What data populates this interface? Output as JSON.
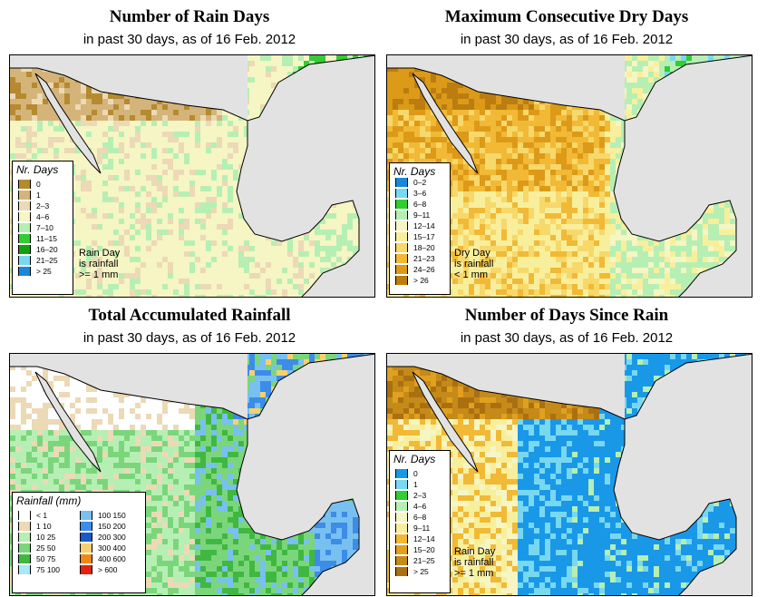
{
  "panels": [
    {
      "title": "Number of Rain Days",
      "subtitle": "in past 30 days, as of  16 Feb. 2012",
      "legend": {
        "title": "Nr. Days",
        "items": [
          {
            "label": "0",
            "color": "#b58a30"
          },
          {
            "label": "1",
            "color": "#d5b47a"
          },
          {
            "label": "2–3",
            "color": "#ecd9b6"
          },
          {
            "label": "4–6",
            "color": "#f6f5c4"
          },
          {
            "label": "7–10",
            "color": "#b6efb3"
          },
          {
            "label": "11–15",
            "color": "#33cc33"
          },
          {
            "label": "16–20",
            "color": "#10a010"
          },
          {
            "label": "21–25",
            "color": "#78d8f0"
          },
          {
            "label": "> 25",
            "color": "#1a88d8"
          }
        ]
      },
      "note": [
        "Rain Day",
        "is rainfall",
        ">= 1 mm"
      ]
    },
    {
      "title": "Maximum Consecutive Dry Days",
      "subtitle": "in past 30 days, as of  16 Feb. 2012",
      "legend": {
        "title": "Nr. Days",
        "items": [
          {
            "label": "0–2",
            "color": "#1a88d8"
          },
          {
            "label": "3–6",
            "color": "#78d8f0"
          },
          {
            "label": "6–8",
            "color": "#33cc33"
          },
          {
            "label": "9–11",
            "color": "#b6efb3"
          },
          {
            "label": "12–14",
            "color": "#f6f5c4"
          },
          {
            "label": "15–17",
            "color": "#f8ef9c"
          },
          {
            "label": "18–20",
            "color": "#f7d86a"
          },
          {
            "label": "21–23",
            "color": "#f1b935"
          },
          {
            "label": "24–26",
            "color": "#dc9a18"
          },
          {
            "label": "> 26",
            "color": "#bb7d10"
          }
        ]
      },
      "note": [
        "Dry Day",
        "is rainfall",
        "< 1 mm"
      ]
    },
    {
      "title": "Total Accumulated Rainfall",
      "subtitle": "in past 30 days, as of  16 Feb. 2012",
      "legend": {
        "title": "Rainfall (mm)",
        "left_items": [
          {
            "label": "< 1",
            "color": "#ffffff"
          },
          {
            "label": "1    10",
            "color": "#ecd9b6"
          },
          {
            "label": "10    25",
            "color": "#b6efb3"
          },
          {
            "label": "25    50",
            "color": "#7bd67b"
          },
          {
            "label": "50    75",
            "color": "#40b840"
          },
          {
            "label": "75   100",
            "color": "#a8e8f8"
          }
        ],
        "right_items": [
          {
            "label": "100   150",
            "color": "#78c0f0"
          },
          {
            "label": "150   200",
            "color": "#3c8ce8"
          },
          {
            "label": "200   300",
            "color": "#1c58c8"
          },
          {
            "label": "300   400",
            "color": "#f8d070"
          },
          {
            "label": "400   600",
            "color": "#f08818"
          },
          {
            "label": "> 600",
            "color": "#e82010"
          }
        ]
      }
    },
    {
      "title": "Number of Days Since Rain",
      "subtitle": "in past 30 days, as of  16 Feb. 2012",
      "legend": {
        "title": "Nr. Days",
        "items": [
          {
            "label": "0",
            "color": "#1a98e8"
          },
          {
            "label": "1",
            "color": "#78d8f0"
          },
          {
            "label": "2–3",
            "color": "#33cc33"
          },
          {
            "label": "4–6",
            "color": "#b6efb3"
          },
          {
            "label": "6–8",
            "color": "#f6f5c4"
          },
          {
            "label": "9–11",
            "color": "#f8ef9c"
          },
          {
            "label": "12–14",
            "color": "#f1b935"
          },
          {
            "label": "15–20",
            "color": "#e0a020"
          },
          {
            "label": "21–25",
            "color": "#c58a18"
          },
          {
            "label": "> 25",
            "color": "#aa7010"
          }
        ]
      },
      "note": [
        "Rain Day",
        "is rainfall",
        ">= 1 mm"
      ]
    }
  ]
}
